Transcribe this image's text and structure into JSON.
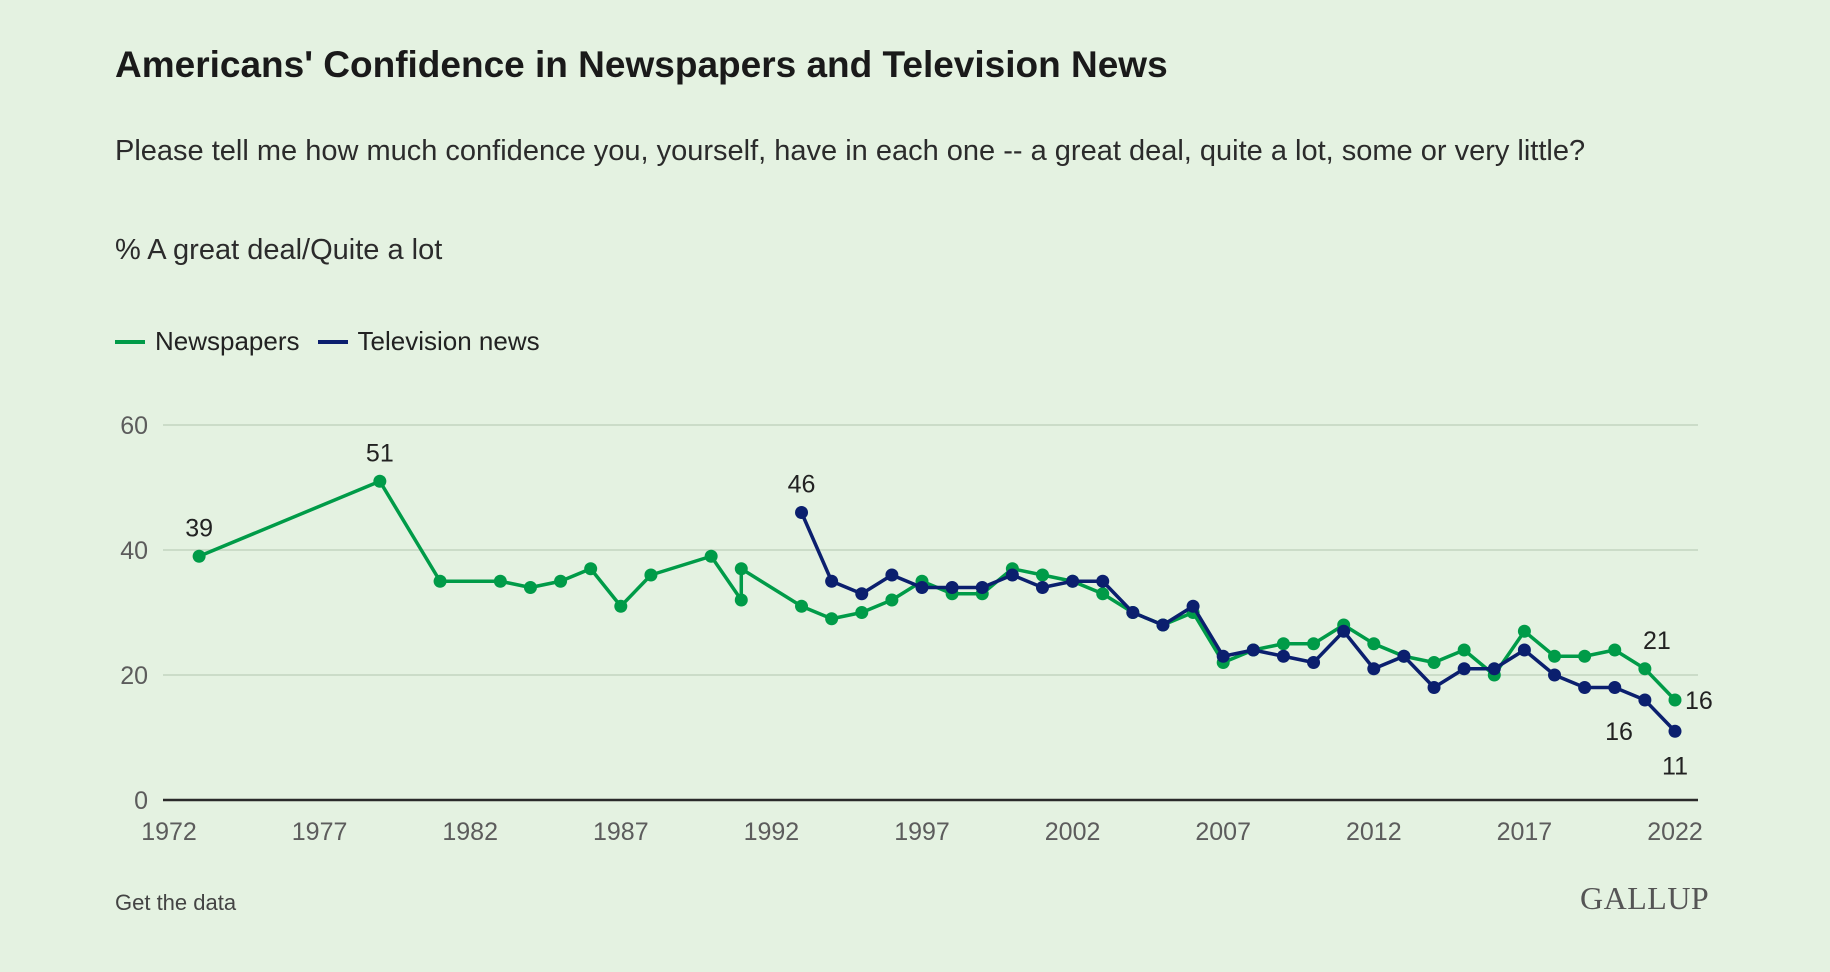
{
  "colors": {
    "newspapers": "#009b48",
    "television": "#0b1f6e",
    "grid": "#cbdcc8",
    "axis": "#2a2a2a",
    "tick": "#5c5c5c"
  },
  "footer": {
    "link": "Get the data",
    "logo": "GALLUP"
  },
  "chart_data": {
    "type": "line",
    "title": "Americans' Confidence in Newspapers and Television News",
    "subtitle": "Please tell me how much confidence you, yourself, have in each one -- a great deal, quite a lot, some or very little?",
    "measure": "% A great deal/Quite a lot",
    "xlabel": "",
    "ylabel": "",
    "xlim": [
      1972,
      2022
    ],
    "ylim": [
      0,
      60
    ],
    "xticks": [
      1972,
      1977,
      1982,
      1987,
      1992,
      1997,
      2002,
      2007,
      2012,
      2017,
      2022
    ],
    "yticks": [
      0,
      20,
      40,
      60
    ],
    "grid": true,
    "legend_position": "top-left",
    "series": [
      {
        "name": "Newspapers",
        "key": "newspapers",
        "points": [
          [
            1973,
            39
          ],
          [
            1979,
            51
          ],
          [
            1981,
            35
          ],
          [
            1983,
            35
          ],
          [
            1984,
            34
          ],
          [
            1985,
            35
          ],
          [
            1986,
            37
          ],
          [
            1987,
            31
          ],
          [
            1988,
            36
          ],
          [
            1990,
            39
          ],
          [
            1991,
            32
          ],
          [
            1991,
            37
          ],
          [
            1993,
            31
          ],
          [
            1994,
            29
          ],
          [
            1995,
            30
          ],
          [
            1996,
            32
          ],
          [
            1997,
            35
          ],
          [
            1998,
            33
          ],
          [
            1999,
            33
          ],
          [
            2000,
            37
          ],
          [
            2001,
            36
          ],
          [
            2002,
            35
          ],
          [
            2003,
            33
          ],
          [
            2004,
            30
          ],
          [
            2005,
            28
          ],
          [
            2006,
            30
          ],
          [
            2007,
            22
          ],
          [
            2008,
            24
          ],
          [
            2009,
            25
          ],
          [
            2010,
            25
          ],
          [
            2011,
            28
          ],
          [
            2012,
            25
          ],
          [
            2013,
            23
          ],
          [
            2014,
            22
          ],
          [
            2015,
            24
          ],
          [
            2016,
            20
          ],
          [
            2017,
            27
          ],
          [
            2018,
            23
          ],
          [
            2019,
            23
          ],
          [
            2020,
            24
          ],
          [
            2021,
            21
          ],
          [
            2022,
            16
          ]
        ]
      },
      {
        "name": "Television news",
        "key": "television",
        "points": [
          [
            1993,
            46
          ],
          [
            1994,
            35
          ],
          [
            1995,
            33
          ],
          [
            1996,
            36
          ],
          [
            1997,
            34
          ],
          [
            1998,
            34
          ],
          [
            1999,
            34
          ],
          [
            2000,
            36
          ],
          [
            2001,
            34
          ],
          [
            2002,
            35
          ],
          [
            2003,
            35
          ],
          [
            2004,
            30
          ],
          [
            2005,
            28
          ],
          [
            2006,
            31
          ],
          [
            2007,
            23
          ],
          [
            2008,
            24
          ],
          [
            2009,
            23
          ],
          [
            2010,
            22
          ],
          [
            2011,
            27
          ],
          [
            2012,
            21
          ],
          [
            2013,
            23
          ],
          [
            2014,
            18
          ],
          [
            2015,
            21
          ],
          [
            2016,
            21
          ],
          [
            2017,
            24
          ],
          [
            2018,
            20
          ],
          [
            2019,
            18
          ],
          [
            2020,
            18
          ],
          [
            2021,
            16
          ],
          [
            2022,
            11
          ]
        ]
      }
    ],
    "annotations": [
      {
        "series": "newspapers",
        "x": 1973,
        "y": 39,
        "text": "39",
        "pos": "above"
      },
      {
        "series": "newspapers",
        "x": 1979,
        "y": 51,
        "text": "51",
        "pos": "above"
      },
      {
        "series": "television",
        "x": 1993,
        "y": 46,
        "text": "46",
        "pos": "above"
      },
      {
        "series": "newspapers",
        "x": 2021,
        "y": 21,
        "text": "21",
        "pos": "above-right"
      },
      {
        "series": "newspapers",
        "x": 2022,
        "y": 16,
        "text": "16",
        "pos": "right"
      },
      {
        "series": "television",
        "x": 2021,
        "y": 16,
        "text": "16",
        "pos": "below-left"
      },
      {
        "series": "television",
        "x": 2022,
        "y": 11,
        "text": "11",
        "pos": "below"
      }
    ]
  }
}
